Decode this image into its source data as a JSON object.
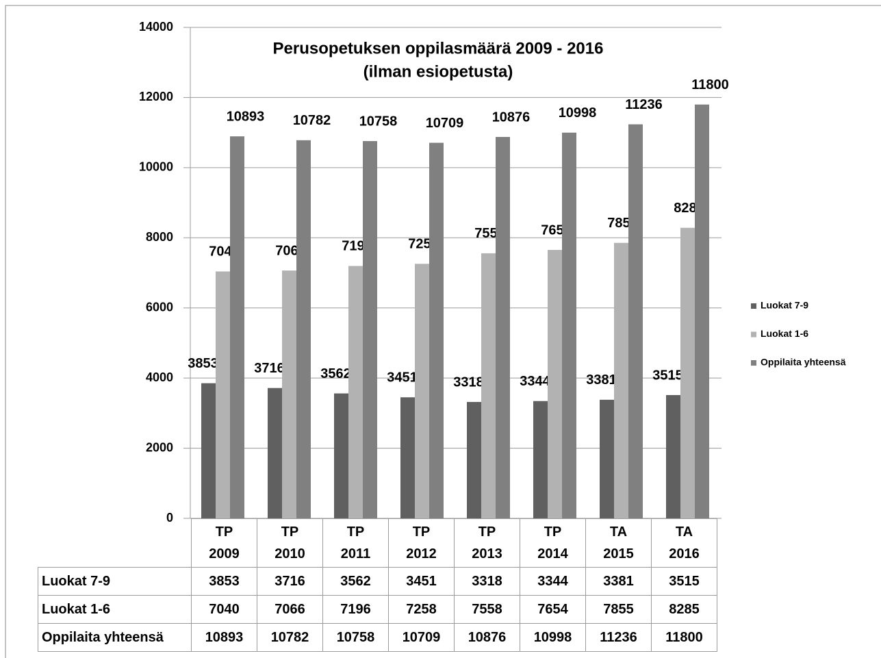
{
  "chart_data": {
    "type": "bar",
    "title": "Perusopetuksen oppilasmäärä  2009 - 2016",
    "subtitle": "(ilman esiopetusta)",
    "categories": [
      "TP 2009",
      "TP 2010",
      "TP 2011",
      "TP 2012",
      "TP 2013",
      "TP 2014",
      "TA 2015",
      "TA 2016"
    ],
    "series": [
      {
        "name": "Luokat 7-9",
        "color": "#606060",
        "values": [
          3853,
          3716,
          3562,
          3451,
          3318,
          3344,
          3381,
          3515
        ]
      },
      {
        "name": "Luokat 1-6",
        "color": "#b2b2b2",
        "values": [
          7040,
          7066,
          7196,
          7258,
          7558,
          7654,
          7855,
          8285
        ]
      },
      {
        "name": "Oppilaita yhteensä",
        "color": "#808080",
        "values": [
          10893,
          10782,
          10758,
          10709,
          10876,
          10998,
          11236,
          11800
        ]
      }
    ],
    "ylim": [
      0,
      14000
    ],
    "yticks": [
      0,
      2000,
      4000,
      6000,
      8000,
      10000,
      12000,
      14000
    ],
    "grid": true,
    "legend": "right"
  }
}
